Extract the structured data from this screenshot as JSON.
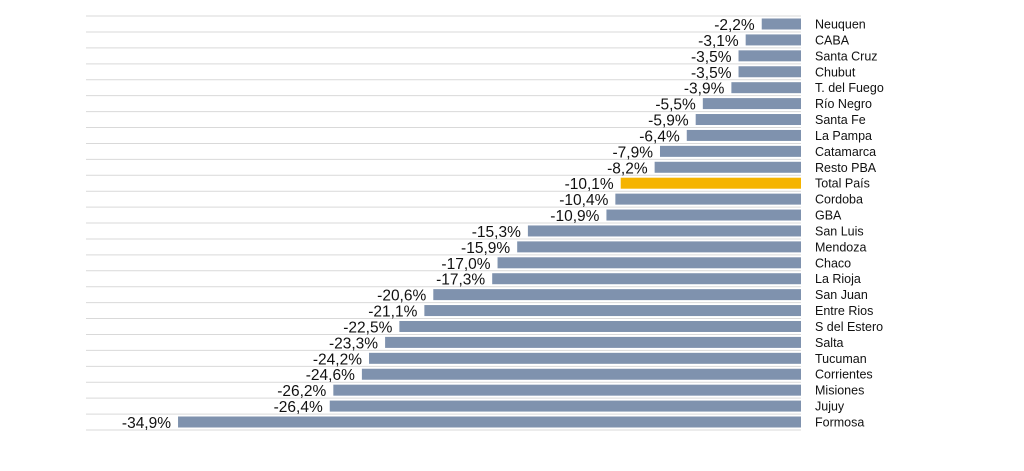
{
  "chart_data": {
    "type": "bar",
    "orientation": "horizontal",
    "title": "",
    "xlabel": "",
    "ylabel": "",
    "xlim": [
      -35,
      0
    ],
    "grid": true,
    "categories": [
      "Neuquen",
      "CABA",
      "Santa Cruz",
      "Chubut",
      "T. del Fuego",
      "Río Negro",
      "Santa Fe",
      "La Pampa",
      "Catamarca",
      "Resto PBA",
      "Total País",
      "Cordoba",
      "GBA",
      "San Luis",
      "Mendoza",
      "Chaco",
      "La Rioja",
      "San Juan",
      "Entre Rios",
      "S del Estero",
      "Salta",
      "Tucuman",
      "Corrientes",
      "Misiones",
      "Jujuy",
      "Formosa"
    ],
    "values": [
      -2.2,
      -3.1,
      -3.5,
      -3.5,
      -3.9,
      -5.5,
      -5.9,
      -6.4,
      -7.9,
      -8.2,
      -10.1,
      -10.4,
      -10.9,
      -15.3,
      -15.9,
      -17.0,
      -17.3,
      -20.6,
      -21.1,
      -22.5,
      -23.3,
      -24.2,
      -24.6,
      -26.2,
      -26.4,
      -34.9
    ],
    "value_labels": [
      "-2,2%",
      "-3,1%",
      "-3,5%",
      "-3,5%",
      "-3,9%",
      "-5,5%",
      "-5,9%",
      "-6,4%",
      "-7,9%",
      "-8,2%",
      "-10,1%",
      "-10,4%",
      "-10,9%",
      "-15,3%",
      "-15,9%",
      "-17,0%",
      "-17,3%",
      "-20,6%",
      "-21,1%",
      "-22,5%",
      "-23,3%",
      "-24,2%",
      "-24,6%",
      "-26,2%",
      "-26,4%",
      "-34,9%"
    ],
    "highlight": "Total País",
    "colors": {
      "bar": "#7f92ae",
      "highlight": "#f5b400"
    }
  }
}
